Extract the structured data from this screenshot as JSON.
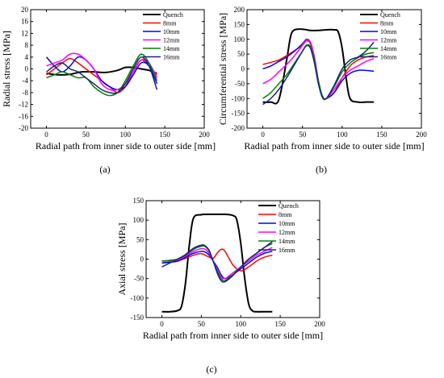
{
  "figure": {
    "panels": [
      {
        "label": "(a)",
        "letter": "a"
      },
      {
        "label": "(b)",
        "letter": "b"
      },
      {
        "label": "(c)",
        "letter": "c"
      }
    ]
  },
  "chart_data": [
    {
      "type": "line",
      "title": "",
      "panel_label": "(a)",
      "xlabel": "Radial path from inner side to outer side [mm]",
      "ylabel": "Radial stress [MPa]",
      "xlim": [
        -20,
        200
      ],
      "ylim": [
        -20,
        20
      ],
      "xticks": [
        0,
        50,
        100,
        150,
        200
      ],
      "yticks": [
        -20,
        -16,
        -12,
        -8,
        -4,
        0,
        4,
        8,
        12,
        16,
        20
      ],
      "grid": false,
      "legend_position": "top-right",
      "series": [
        {
          "name": "Quench",
          "color": "#000000",
          "x": [
            0,
            15,
            30,
            45,
            60,
            75,
            90,
            100,
            110,
            120,
            130,
            140
          ],
          "y": [
            -1.5,
            -2,
            -1.8,
            -1,
            -1,
            -1.2,
            -0.5,
            0.5,
            0.5,
            0,
            -0.5,
            -1.5
          ]
        },
        {
          "name": "8mm",
          "color": "#ff0000",
          "x": [
            0,
            10,
            20,
            30,
            40,
            50,
            60,
            70,
            80,
            90,
            100,
            110,
            120,
            130,
            140
          ],
          "y": [
            -2,
            0,
            2,
            3.5,
            2,
            0,
            -2,
            -4,
            -6,
            -8,
            -6,
            -1,
            3,
            1,
            -2
          ]
        },
        {
          "name": "10mm",
          "color": "#0000ff",
          "x": [
            0,
            10,
            20,
            30,
            40,
            50,
            60,
            70,
            80,
            90,
            100,
            110,
            120,
            130,
            140
          ],
          "y": [
            4,
            1,
            -1,
            1,
            4,
            3,
            0,
            -4,
            -6,
            -7,
            -6,
            -2,
            2,
            1,
            -5
          ]
        },
        {
          "name": "12mm",
          "color": "#ff00ff",
          "x": [
            0,
            10,
            20,
            30,
            40,
            50,
            60,
            70,
            80,
            90,
            100,
            110,
            120,
            130,
            140
          ],
          "y": [
            1,
            2,
            3,
            5,
            5,
            3,
            0,
            -5,
            -7,
            -7,
            -5,
            -1,
            3,
            2,
            -3
          ]
        },
        {
          "name": "14mm",
          "color": "#008000",
          "x": [
            0,
            10,
            20,
            30,
            40,
            50,
            60,
            70,
            80,
            90,
            100,
            110,
            120,
            130,
            140
          ],
          "y": [
            -3,
            -2,
            -1,
            -2,
            -3,
            -3,
            -6,
            -8,
            -9,
            -8,
            -4,
            1,
            5,
            2,
            -4
          ]
        },
        {
          "name": "16mm",
          "color": "#1a237e",
          "x": [
            0,
            10,
            20,
            30,
            40,
            50,
            60,
            70,
            80,
            90,
            100,
            110,
            120,
            130,
            140
          ],
          "y": [
            -1,
            1,
            2,
            0,
            -1,
            -3,
            -5,
            -7,
            -8,
            -8,
            -5,
            0,
            4,
            1,
            -7
          ]
        }
      ]
    },
    {
      "type": "line",
      "title": "",
      "panel_label": "(b)",
      "xlabel": "Radial path from inner side to outer side [mm]",
      "ylabel": "Circumferential stress [MPa]",
      "xlim": [
        -20,
        200
      ],
      "ylim": [
        -200,
        200
      ],
      "xticks": [
        0,
        50,
        100,
        150,
        200
      ],
      "yticks": [
        -200,
        -150,
        -100,
        -50,
        0,
        50,
        100,
        150,
        200
      ],
      "grid": false,
      "legend_position": "top-right",
      "series": [
        {
          "name": "Quench",
          "color": "#000000",
          "x": [
            0,
            10,
            20,
            30,
            35,
            40,
            50,
            60,
            70,
            80,
            90,
            95,
            100,
            105,
            110,
            120,
            130,
            140
          ],
          "y": [
            -112,
            -112,
            -105,
            30,
            110,
            132,
            134,
            130,
            130,
            132,
            132,
            125,
            70,
            -30,
            -100,
            -112,
            -112,
            -112
          ]
        },
        {
          "name": "8mm",
          "color": "#ff0000",
          "x": [
            0,
            10,
            20,
            30,
            40,
            50,
            55,
            60,
            65,
            70,
            75,
            80,
            90,
            100,
            110,
            120,
            130,
            140
          ],
          "y": [
            15,
            22,
            30,
            45,
            62,
            80,
            95,
            85,
            30,
            -40,
            -95,
            -100,
            -80,
            -30,
            10,
            30,
            40,
            45
          ]
        },
        {
          "name": "10mm",
          "color": "#0000ff",
          "x": [
            0,
            10,
            20,
            30,
            40,
            50,
            55,
            60,
            65,
            70,
            75,
            80,
            90,
            100,
            110,
            120,
            130,
            140
          ],
          "y": [
            0,
            10,
            25,
            40,
            60,
            85,
            100,
            90,
            40,
            -40,
            -95,
            -100,
            -80,
            -40,
            -15,
            -5,
            -5,
            -8
          ]
        },
        {
          "name": "12mm",
          "color": "#ff00ff",
          "x": [
            0,
            10,
            20,
            30,
            40,
            50,
            55,
            60,
            65,
            70,
            75,
            80,
            90,
            100,
            110,
            120,
            130,
            140
          ],
          "y": [
            -50,
            -35,
            -10,
            15,
            45,
            80,
            98,
            90,
            40,
            -40,
            -95,
            -100,
            -70,
            -30,
            -5,
            10,
            25,
            35
          ]
        },
        {
          "name": "14mm",
          "color": "#008000",
          "x": [
            0,
            10,
            20,
            30,
            40,
            50,
            55,
            60,
            65,
            70,
            75,
            80,
            90,
            100,
            110,
            120,
            130,
            140
          ],
          "y": [
            -100,
            -80,
            -50,
            -20,
            20,
            60,
            80,
            75,
            30,
            -40,
            -90,
            -100,
            -60,
            -10,
            20,
            38,
            50,
            55
          ]
        },
        {
          "name": "16mm",
          "color": "#1a237e",
          "x": [
            0,
            10,
            20,
            30,
            40,
            50,
            55,
            60,
            65,
            70,
            75,
            80,
            90,
            100,
            110,
            120,
            130,
            140
          ],
          "y": [
            -120,
            -100,
            -70,
            -30,
            15,
            60,
            78,
            70,
            20,
            -50,
            -95,
            -100,
            -55,
            0,
            30,
            40,
            60,
            90
          ]
        }
      ]
    },
    {
      "type": "line",
      "title": "",
      "panel_label": "(c)",
      "xlabel": "Radial path from inner side to outer side [mm]",
      "ylabel": "Axial stress [MPa]",
      "xlim": [
        -20,
        200
      ],
      "ylim": [
        -150,
        150
      ],
      "xticks": [
        0,
        50,
        100,
        150,
        200
      ],
      "yticks": [
        -150,
        -100,
        -50,
        0,
        50,
        100,
        150
      ],
      "grid": false,
      "legend_position": "top-right",
      "series": [
        {
          "name": "Quench",
          "color": "#000000",
          "x": [
            0,
            10,
            20,
            25,
            30,
            35,
            40,
            50,
            60,
            70,
            80,
            90,
            95,
            100,
            105,
            110,
            115,
            120,
            130,
            140
          ],
          "y": [
            -135,
            -135,
            -132,
            -120,
            -60,
            40,
            105,
            114,
            115,
            115,
            115,
            112,
            100,
            40,
            -50,
            -115,
            -133,
            -135,
            -135,
            -135
          ]
        },
        {
          "name": "8mm",
          "color": "#ff0000",
          "x": [
            0,
            10,
            20,
            30,
            40,
            50,
            60,
            65,
            70,
            75,
            80,
            90,
            100,
            110,
            120,
            130,
            140
          ],
          "y": [
            -10,
            -8,
            -5,
            2,
            10,
            14,
            5,
            2,
            15,
            25,
            20,
            -15,
            -30,
            -20,
            -5,
            5,
            10
          ]
        },
        {
          "name": "10mm",
          "color": "#0000ff",
          "x": [
            0,
            10,
            20,
            30,
            40,
            50,
            55,
            60,
            65,
            70,
            75,
            80,
            90,
            100,
            110,
            120,
            130,
            140
          ],
          "y": [
            -10,
            -8,
            -5,
            5,
            15,
            20,
            18,
            10,
            -5,
            -20,
            -40,
            -50,
            -40,
            -25,
            -10,
            5,
            15,
            20
          ]
        },
        {
          "name": "12mm",
          "color": "#ff00ff",
          "x": [
            0,
            10,
            20,
            30,
            40,
            50,
            55,
            60,
            65,
            70,
            75,
            80,
            90,
            100,
            110,
            120,
            130,
            140
          ],
          "y": [
            -5,
            -5,
            -2,
            8,
            20,
            27,
            25,
            15,
            -5,
            -25,
            -45,
            -50,
            -35,
            -20,
            -5,
            10,
            20,
            30
          ]
        },
        {
          "name": "14mm",
          "color": "#008000",
          "x": [
            0,
            10,
            20,
            30,
            40,
            50,
            55,
            60,
            65,
            70,
            75,
            80,
            90,
            100,
            110,
            120,
            130,
            140
          ],
          "y": [
            -5,
            -3,
            0,
            10,
            25,
            33,
            32,
            20,
            -5,
            -30,
            -50,
            -55,
            -40,
            -20,
            0,
            15,
            30,
            40
          ]
        },
        {
          "name": "16mm",
          "color": "#1a237e",
          "x": [
            0,
            10,
            20,
            30,
            40,
            50,
            55,
            60,
            65,
            70,
            75,
            80,
            90,
            100,
            110,
            120,
            130,
            140
          ],
          "y": [
            -20,
            -10,
            0,
            12,
            28,
            36,
            34,
            22,
            -5,
            -35,
            -55,
            -58,
            -42,
            -20,
            0,
            15,
            30,
            45
          ]
        }
      ]
    }
  ]
}
